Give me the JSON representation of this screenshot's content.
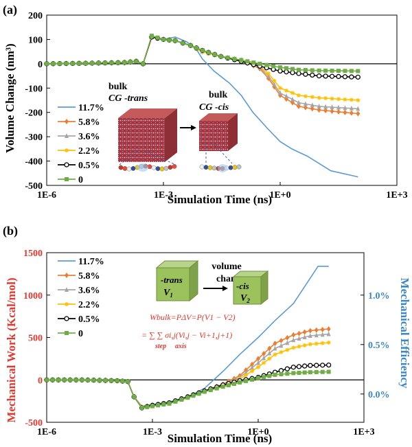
{
  "chart_data": [
    {
      "panel": "(a)",
      "type": "line",
      "xscale": "log",
      "xlabel": "Simulation Time (ns)",
      "ylabel": "Volume Change (nm³)",
      "xlim": [
        1e-06,
        1000
      ],
      "ylim": [
        -500,
        200
      ],
      "xticks": [
        {
          "v": 1e-06,
          "label": "1E-6"
        },
        {
          "v": 0.001,
          "label": "1E-3"
        },
        {
          "v": 1,
          "label": "1E+0"
        },
        {
          "v": 1000,
          "label": "1E+3"
        }
      ],
      "yticks": [
        200,
        100,
        0,
        -100,
        -200,
        -300,
        -400,
        -500
      ],
      "legend_position": "left",
      "series": [
        {
          "name": "11.7%",
          "color": "#5b9bd5",
          "marker": "none",
          "x": [
            1e-06,
            1e-05,
            0.0001,
            0.0002,
            0.0003,
            0.0005,
            0.001,
            0.002,
            0.004,
            0.007,
            0.01,
            0.02,
            0.05,
            0.1,
            0.2,
            0.5,
            1,
            2,
            5,
            10,
            20,
            100
          ],
          "y": [
            0,
            2,
            5,
            10,
            0,
            110,
            100,
            110,
            90,
            60,
            20,
            -30,
            -80,
            -130,
            -200,
            -270,
            -320,
            -350,
            -380,
            -410,
            -440,
            -465
          ]
        },
        {
          "name": "5.8%",
          "color": "#ed7d31",
          "marker": "diamond",
          "x": [
            1e-06,
            1e-05,
            0.0001,
            0.0002,
            0.0003,
            0.0005,
            0.001,
            0.002,
            0.005,
            0.01,
            0.03,
            0.1,
            0.3,
            0.5,
            1,
            3,
            10,
            100
          ],
          "y": [
            0,
            2,
            5,
            10,
            0,
            110,
            100,
            95,
            75,
            50,
            30,
            15,
            -20,
            -60,
            -130,
            -175,
            -190,
            -205
          ]
        },
        {
          "name": "3.6%",
          "color": "#a6a6a6",
          "marker": "triangle",
          "x": [
            1e-06,
            1e-05,
            0.0001,
            0.0002,
            0.0003,
            0.0005,
            0.001,
            0.002,
            0.005,
            0.01,
            0.03,
            0.1,
            0.3,
            0.5,
            1,
            3,
            10,
            100
          ],
          "y": [
            0,
            2,
            5,
            10,
            0,
            110,
            100,
            95,
            75,
            50,
            30,
            15,
            -15,
            -50,
            -120,
            -160,
            -175,
            -185
          ]
        },
        {
          "name": "2.2%",
          "color": "#ffc000",
          "marker": "star",
          "x": [
            1e-06,
            1e-05,
            0.0001,
            0.0002,
            0.0003,
            0.0005,
            0.001,
            0.002,
            0.005,
            0.01,
            0.03,
            0.1,
            0.3,
            0.5,
            1,
            3,
            10,
            100
          ],
          "y": [
            0,
            2,
            5,
            10,
            0,
            110,
            100,
            95,
            75,
            50,
            30,
            15,
            -10,
            -40,
            -100,
            -130,
            -140,
            -150
          ]
        },
        {
          "name": "0.5%",
          "color": "#000000",
          "marker": "circle",
          "x": [
            1e-06,
            1e-05,
            0.0001,
            0.0002,
            0.0003,
            0.0005,
            0.001,
            0.002,
            0.005,
            0.01,
            0.03,
            0.1,
            0.3,
            1,
            3,
            10,
            100
          ],
          "y": [
            0,
            2,
            5,
            10,
            0,
            110,
            100,
            95,
            75,
            55,
            30,
            10,
            -10,
            -30,
            -40,
            -50,
            -55
          ]
        },
        {
          "name": "0",
          "color": "#70ad47",
          "marker": "square",
          "x": [
            1e-06,
            1e-05,
            0.0001,
            0.0002,
            0.0003,
            0.0005,
            0.001,
            0.002,
            0.005,
            0.01,
            0.03,
            0.1,
            0.3,
            1,
            3,
            10,
            100
          ],
          "y": [
            0,
            2,
            5,
            10,
            0,
            115,
            100,
            95,
            75,
            55,
            30,
            15,
            0,
            -15,
            -25,
            -28,
            -30
          ]
        }
      ],
      "annotations": [
        "bulk",
        "CG -trans",
        "bulk",
        "CG -cis"
      ]
    },
    {
      "panel": "(b)",
      "type": "line",
      "xscale": "log",
      "xlabel": "Simulation Time (ns)",
      "ylabel": "Mechanical Work (Kcal/mol)",
      "y2label": "Mechanical Efficiency",
      "xlim": [
        1e-06,
        1000
      ],
      "ylim": [
        -500,
        1500
      ],
      "y2lim": [
        -0.00286,
        0.01429
      ],
      "xticks": [
        {
          "v": 1e-06,
          "label": "1E-6"
        },
        {
          "v": 0.001,
          "label": "1E-3"
        },
        {
          "v": 1,
          "label": "1E+0"
        },
        {
          "v": 1000,
          "label": "1E+3"
        }
      ],
      "yticks": [
        1500,
        1000,
        500,
        0,
        -500
      ],
      "y2ticks": [
        {
          "v": 0.0,
          "label": "0.0%"
        },
        {
          "v": 0.005,
          "label": "0.5%"
        },
        {
          "v": 0.01,
          "label": "1.0%"
        }
      ],
      "legend_position": "top-left",
      "series": [
        {
          "name": "11.7%",
          "color": "#5b9bd5",
          "marker": "none",
          "x": [
            1e-06,
            1e-05,
            0.0001,
            0.0002,
            0.0003,
            0.0005,
            0.001,
            0.003,
            0.01,
            0.03,
            0.1,
            0.3,
            1,
            3,
            10,
            30,
            50,
            100
          ],
          "y": [
            0,
            0,
            -10,
            -20,
            -200,
            -310,
            -290,
            -260,
            -200,
            -100,
            100,
            300,
            500,
            700,
            900,
            1200,
            1340,
            1340
          ]
        },
        {
          "name": "5.8%",
          "color": "#ed7d31",
          "marker": "diamond",
          "x": [
            1e-06,
            1e-05,
            0.0001,
            0.0002,
            0.0003,
            0.0005,
            0.001,
            0.003,
            0.01,
            0.03,
            0.1,
            0.3,
            1,
            3,
            10,
            30,
            100
          ],
          "y": [
            0,
            0,
            -10,
            -20,
            -200,
            -320,
            -300,
            -270,
            -200,
            -130,
            -50,
            50,
            250,
            430,
            530,
            580,
            600
          ]
        },
        {
          "name": "3.6%",
          "color": "#a6a6a6",
          "marker": "triangle",
          "x": [
            1e-06,
            1e-05,
            0.0001,
            0.0002,
            0.0003,
            0.0005,
            0.001,
            0.003,
            0.01,
            0.03,
            0.1,
            0.3,
            1,
            3,
            10,
            30,
            100
          ],
          "y": [
            0,
            0,
            -10,
            -20,
            -200,
            -320,
            -300,
            -270,
            -200,
            -130,
            -60,
            30,
            200,
            370,
            470,
            520,
            540
          ]
        },
        {
          "name": "2.2%",
          "color": "#ffc000",
          "marker": "star",
          "x": [
            1e-06,
            1e-05,
            0.0001,
            0.0002,
            0.0003,
            0.0005,
            0.001,
            0.003,
            0.01,
            0.03,
            0.1,
            0.3,
            1,
            3,
            10,
            30,
            100
          ],
          "y": [
            0,
            0,
            -10,
            -20,
            -200,
            -320,
            -300,
            -270,
            -200,
            -130,
            -70,
            10,
            150,
            300,
            380,
            420,
            440
          ]
        },
        {
          "name": "0.5%",
          "color": "#000000",
          "marker": "circle",
          "x": [
            1e-06,
            1e-05,
            0.0001,
            0.0002,
            0.0003,
            0.0005,
            0.001,
            0.003,
            0.01,
            0.03,
            0.1,
            0.3,
            1,
            3,
            10,
            30,
            100
          ],
          "y": [
            0,
            0,
            -10,
            -20,
            -200,
            -330,
            -300,
            -270,
            -200,
            -130,
            -60,
            -10,
            30,
            90,
            150,
            170,
            175
          ]
        },
        {
          "name": "0",
          "color": "#70ad47",
          "marker": "square",
          "x": [
            1e-06,
            1e-05,
            0.0001,
            0.0002,
            0.0003,
            0.0005,
            0.001,
            0.003,
            0.01,
            0.03,
            0.1,
            0.3,
            1,
            3,
            10,
            30,
            100
          ],
          "y": [
            0,
            0,
            -10,
            -20,
            -200,
            -330,
            -310,
            -280,
            -210,
            -140,
            -80,
            -30,
            20,
            60,
            80,
            90,
            95
          ]
        }
      ],
      "annotations": [
        "volume",
        "change",
        "-trans",
        "V",
        "1",
        "-cis",
        "V",
        "2",
        "Wbulk=PΔV=P(V1 − V2)",
        "= ∑ ∑ σi,j(Vi,j − Vi+1,j+1)",
        "step",
        "axis"
      ]
    }
  ]
}
